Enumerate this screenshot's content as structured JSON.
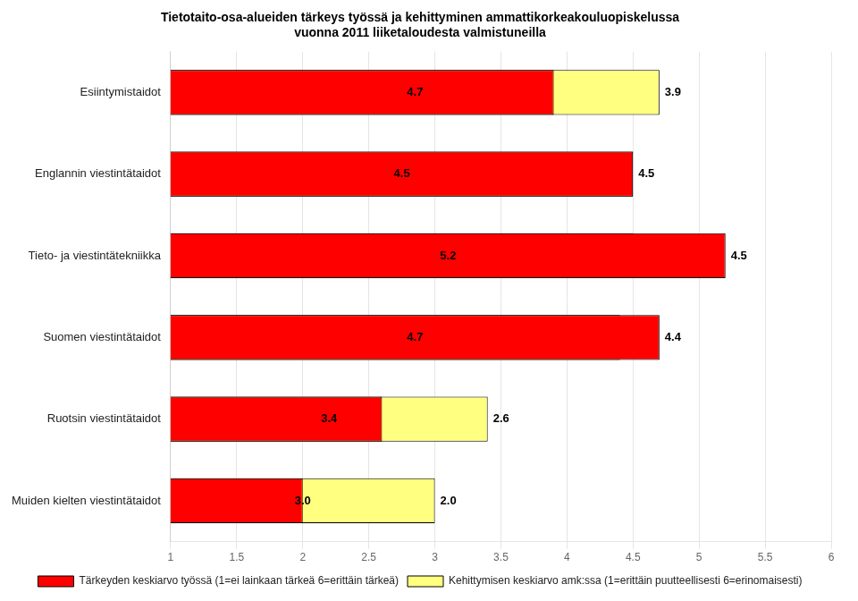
{
  "chart_data": {
    "type": "bar",
    "orientation": "horizontal",
    "title": "Tietotaito-osa-alueiden tärkeys työssä ja kehittyminen ammattikorkeakouluopiskelussa\nvuonna 2011 liiketaloudesta valmistuneilla",
    "categories": [
      "Esiintymistaidot",
      "Englannin viestintätaidot",
      "Tieto- ja viestintätekniikka",
      "Suomen viestintätaidot",
      "Ruotsin viestintätaidot",
      "Muiden kielten viestintätaidot"
    ],
    "series": [
      {
        "name": "Tärkeyden keskiarvo työssä (1=ei lainkaan tärkeä 6=erittäin tärkeä)",
        "color": "#FF0000",
        "values": [
          3.9,
          4.5,
          5.2,
          4.7,
          2.6,
          2.0
        ],
        "value_labels": [
          "3.9",
          "4.5",
          "5.2",
          "4.7",
          "2.6",
          "2.0"
        ]
      },
      {
        "name": "Kehittymisen keskiarvo amk:ssa (1=erittäin puutteellisesti 6=erinomaisesti)",
        "color": "#FFFF80",
        "values": [
          4.7,
          4.5,
          4.5,
          4.4,
          3.4,
          3.0
        ],
        "value_labels": [
          "4.7",
          "4.5",
          "4.5",
          "4.4",
          "3.4",
          "3.0"
        ]
      }
    ],
    "xlim": [
      1,
      6
    ],
    "xticks": [
      1,
      1.5,
      2,
      2.5,
      3,
      3.5,
      4,
      4.5,
      5,
      5.5,
      6
    ],
    "grid": true,
    "legend": "bottom",
    "data_labels": true
  }
}
